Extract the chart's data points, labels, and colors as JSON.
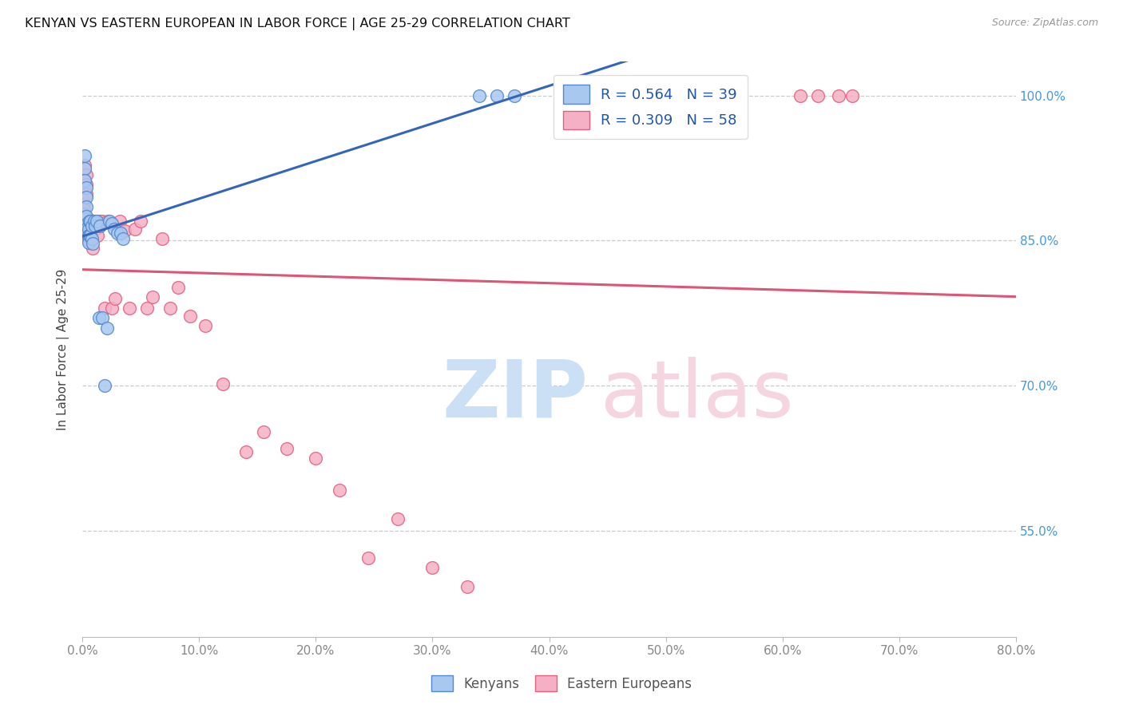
{
  "title": "KENYAN VS EASTERN EUROPEAN IN LABOR FORCE | AGE 25-29 CORRELATION CHART",
  "source": "Source: ZipAtlas.com",
  "ylabel": "In Labor Force | Age 25-29",
  "xlim": [
    0.0,
    0.8
  ],
  "ylim": [
    0.44,
    1.035
  ],
  "kenyan_R": 0.564,
  "kenyan_N": 39,
  "ee_R": 0.309,
  "ee_N": 58,
  "kenyan_color": "#a8c8f0",
  "ee_color": "#f5b0c5",
  "kenyan_edge_color": "#5588cc",
  "ee_edge_color": "#e06080",
  "kenyan_line_color": "#3366bb",
  "ee_line_color": "#dd5577",
  "legend_text_color": "#2255aa",
  "ytick_color": "#4499dd",
  "xtick_color": "#888888",
  "kenyan_x": [
    0.0,
    0.001,
    0.002,
    0.002,
    0.002,
    0.003,
    0.003,
    0.003,
    0.003,
    0.004,
    0.004,
    0.004,
    0.005,
    0.005,
    0.005,
    0.006,
    0.006,
    0.007,
    0.007,
    0.008,
    0.008,
    0.009,
    0.01,
    0.011,
    0.012,
    0.014,
    0.015,
    0.017,
    0.019,
    0.021,
    0.023,
    0.025,
    0.027,
    0.03,
    0.033,
    0.035,
    0.34,
    0.355,
    0.37
  ],
  "kenyan_y": [
    0.872,
    0.878,
    0.938,
    0.925,
    0.912,
    0.905,
    0.895,
    0.885,
    0.875,
    0.868,
    0.863,
    0.857,
    0.862,
    0.855,
    0.848,
    0.87,
    0.855,
    0.87,
    0.855,
    0.865,
    0.852,
    0.847,
    0.87,
    0.865,
    0.87,
    0.77,
    0.865,
    0.77,
    0.7,
    0.76,
    0.87,
    0.868,
    0.862,
    0.858,
    0.858,
    0.852,
    1.0,
    1.0,
    1.0
  ],
  "ee_x": [
    0.0,
    0.001,
    0.001,
    0.001,
    0.002,
    0.002,
    0.002,
    0.003,
    0.003,
    0.003,
    0.004,
    0.004,
    0.005,
    0.005,
    0.005,
    0.006,
    0.006,
    0.007,
    0.007,
    0.008,
    0.008,
    0.009,
    0.01,
    0.011,
    0.012,
    0.013,
    0.015,
    0.017,
    0.019,
    0.022,
    0.025,
    0.028,
    0.032,
    0.036,
    0.04,
    0.045,
    0.05,
    0.055,
    0.06,
    0.068,
    0.075,
    0.082,
    0.092,
    0.105,
    0.12,
    0.14,
    0.155,
    0.175,
    0.2,
    0.22,
    0.245,
    0.27,
    0.3,
    0.33,
    0.615,
    0.63,
    0.648,
    0.66
  ],
  "ee_y": [
    0.893,
    0.888,
    0.883,
    0.877,
    0.928,
    0.87,
    0.862,
    0.918,
    0.908,
    0.898,
    0.872,
    0.862,
    0.872,
    0.857,
    0.85,
    0.87,
    0.855,
    0.868,
    0.853,
    0.865,
    0.85,
    0.842,
    0.87,
    0.862,
    0.87,
    0.855,
    0.87,
    0.87,
    0.78,
    0.87,
    0.78,
    0.79,
    0.87,
    0.86,
    0.78,
    0.862,
    0.87,
    0.78,
    0.792,
    0.852,
    0.78,
    0.802,
    0.772,
    0.762,
    0.702,
    0.632,
    0.652,
    0.635,
    0.625,
    0.592,
    0.522,
    0.562,
    0.512,
    0.492,
    1.0,
    1.0,
    1.0,
    1.0
  ]
}
